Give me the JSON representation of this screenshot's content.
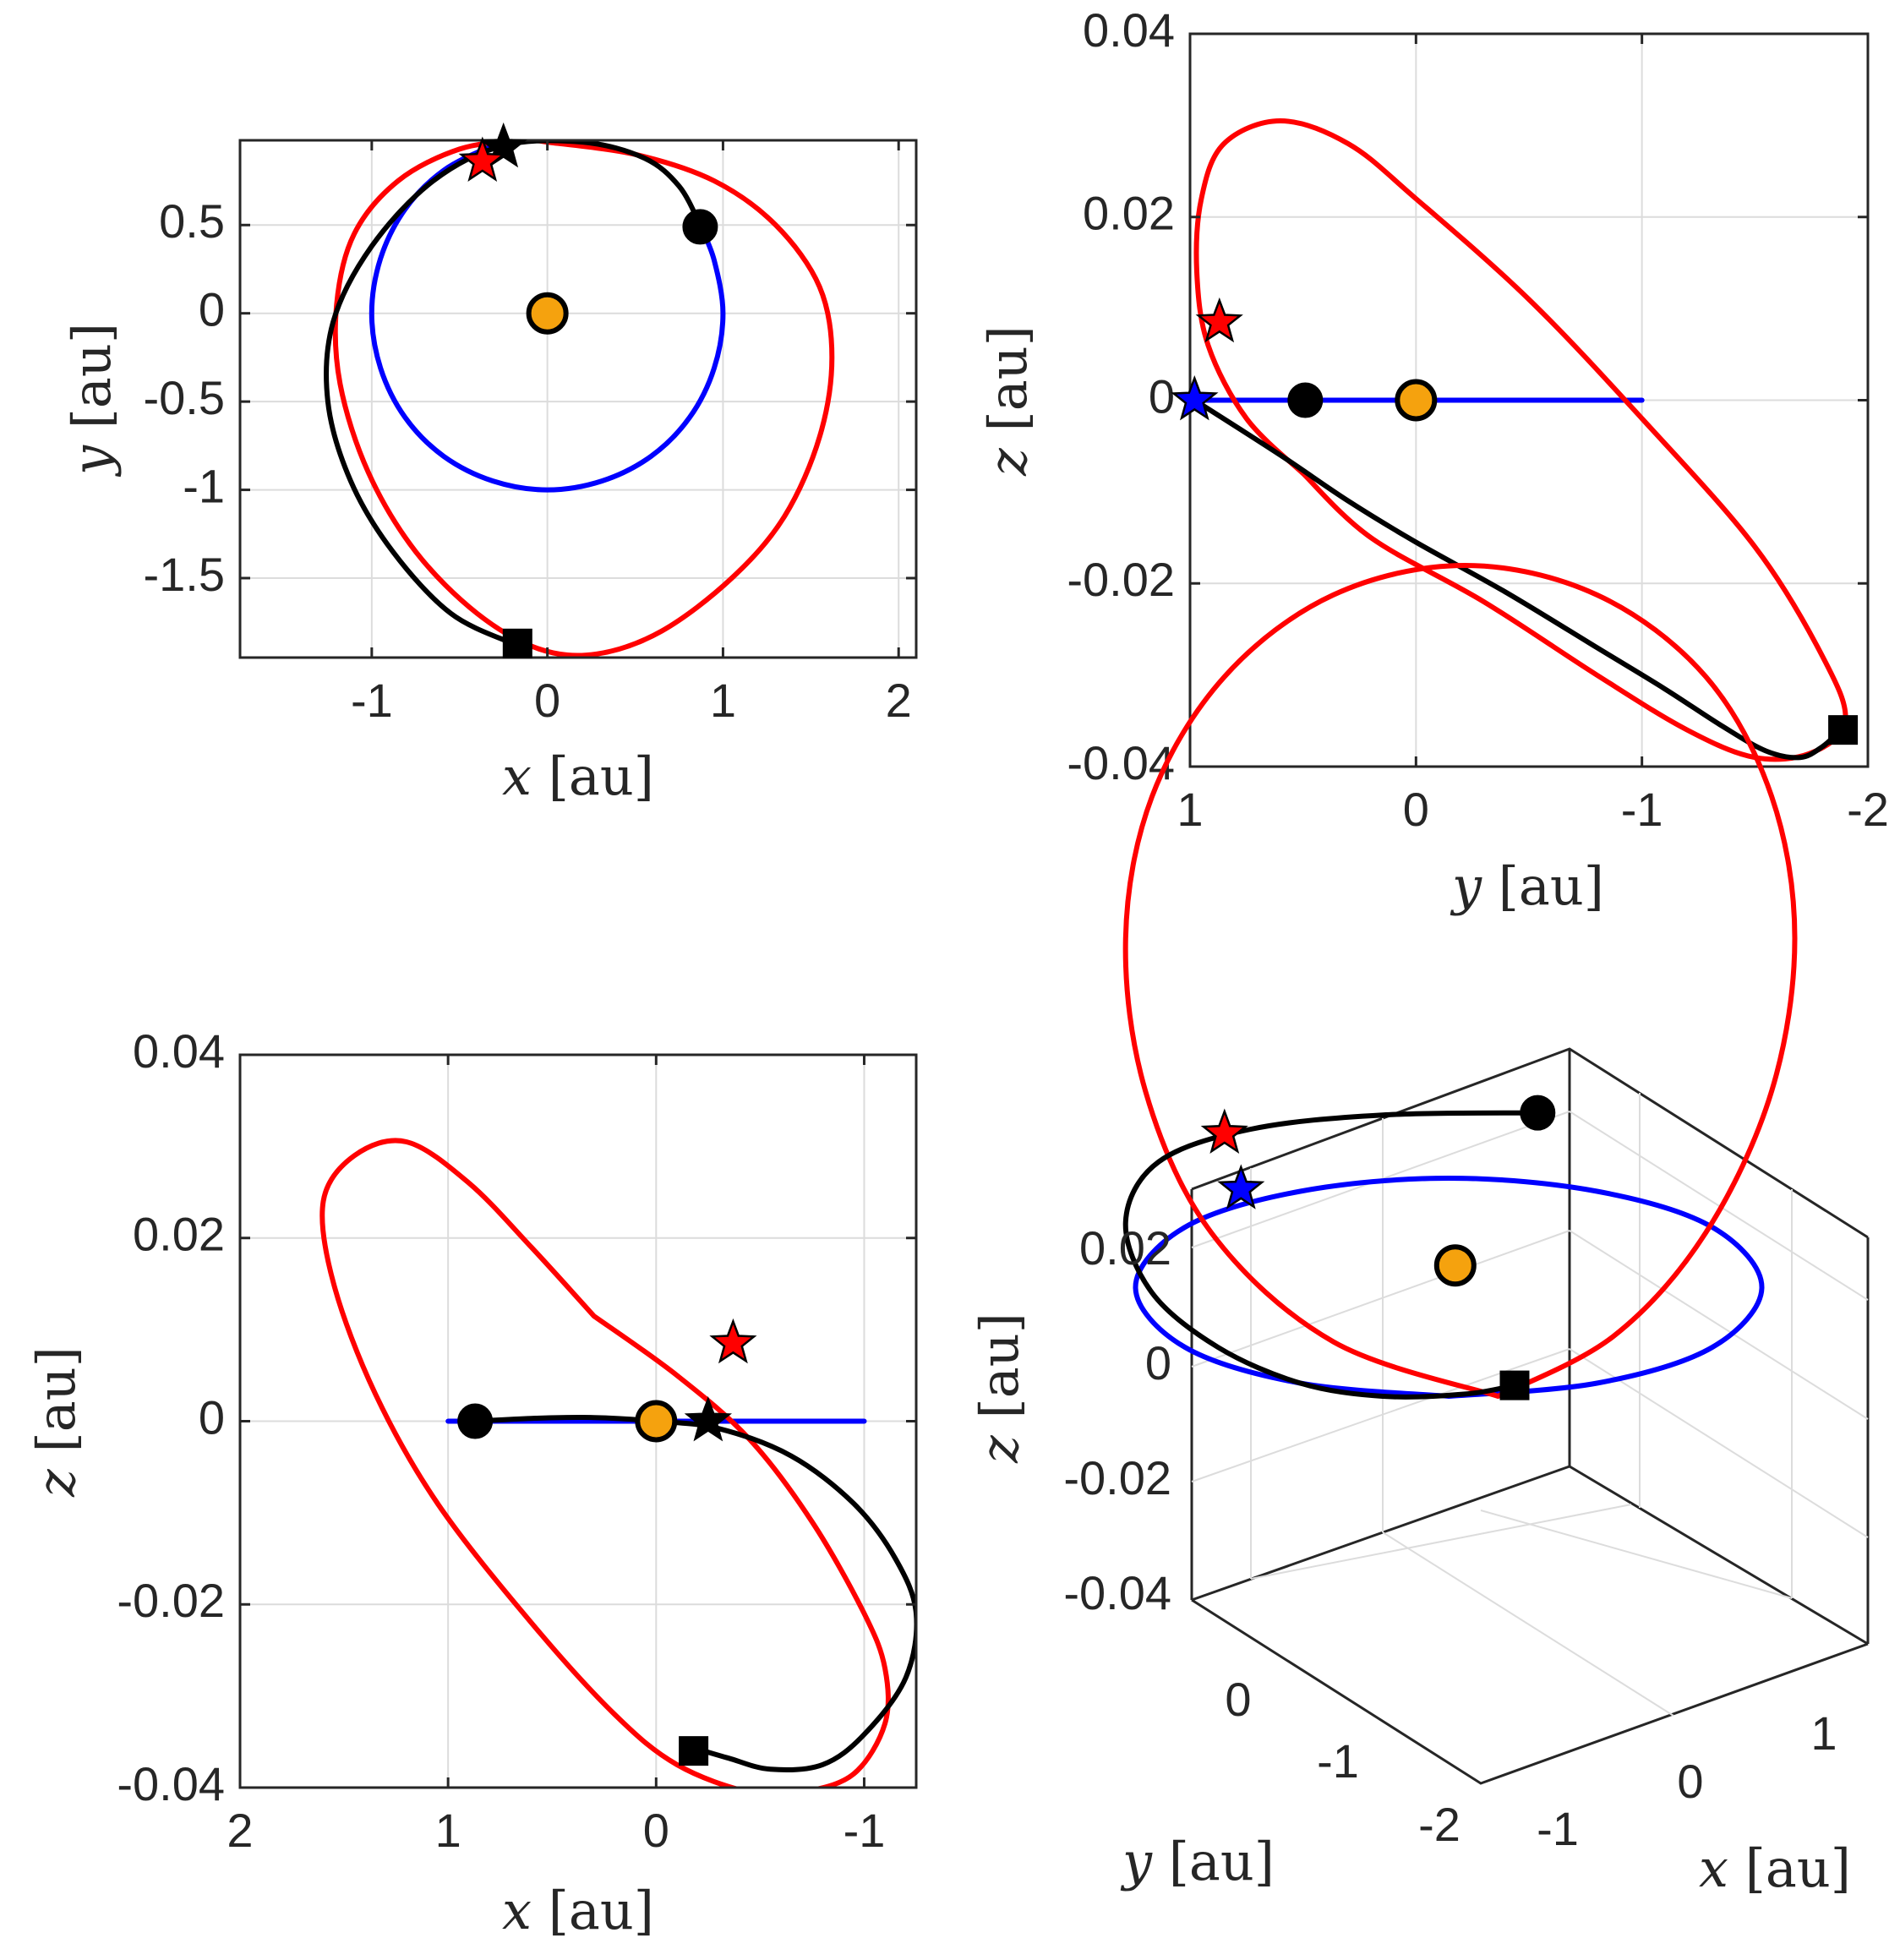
{
  "chart_data": [
    {
      "type": "line",
      "projection": "x-y",
      "xlabel": {
        "var": "x",
        "unit": " [au]"
      },
      "ylabel": {
        "var": "y",
        "unit": " [au]"
      },
      "xlim": [
        -1.75,
        2.1
      ],
      "ylim": [
        -1.95,
        0.98
      ],
      "x_reversed": false,
      "xticks": [
        -1,
        0,
        1,
        2
      ],
      "xtick_labels": [
        "-1",
        "0",
        "1",
        "2"
      ],
      "yticks": [
        -1.5,
        -1,
        -0.5,
        0,
        0.5
      ],
      "ytick_labels": [
        "-1.5",
        "-1",
        "-0.5",
        "0",
        "0.5"
      ],
      "grid": true,
      "series": [
        {
          "color": "#0000ff",
          "points": [
            [
              0.87,
              0.5
            ],
            [
              0.95,
              0.3
            ],
            [
              1.0,
              0.0
            ],
            [
              0.95,
              -0.31
            ],
            [
              0.81,
              -0.59
            ],
            [
              0.59,
              -0.81
            ],
            [
              0.31,
              -0.95
            ],
            [
              0.0,
              -1.0
            ],
            [
              -0.31,
              -0.95
            ],
            [
              -0.59,
              -0.81
            ],
            [
              -0.81,
              -0.59
            ],
            [
              -0.95,
              -0.31
            ],
            [
              -1.0,
              0.0
            ],
            [
              -0.95,
              0.31
            ],
            [
              -0.81,
              0.59
            ],
            [
              -0.59,
              0.81
            ],
            [
              -0.31,
              0.95
            ],
            [
              -0.2,
              0.98
            ]
          ]
        },
        {
          "color": "#ff0000",
          "points": [
            [
              0.0,
              0.97
            ],
            [
              0.5,
              0.9
            ],
            [
              0.95,
              0.75
            ],
            [
              1.3,
              0.5
            ],
            [
              1.55,
              0.15
            ],
            [
              1.62,
              -0.25
            ],
            [
              1.55,
              -0.7
            ],
            [
              1.35,
              -1.15
            ],
            [
              1.05,
              -1.5
            ],
            [
              0.65,
              -1.8
            ],
            [
              0.28,
              -1.93
            ],
            [
              -0.05,
              -1.9
            ],
            [
              -0.4,
              -1.7
            ],
            [
              -0.75,
              -1.35
            ],
            [
              -1.02,
              -0.9
            ],
            [
              -1.18,
              -0.4
            ],
            [
              -1.2,
              0.05
            ],
            [
              -1.1,
              0.45
            ],
            [
              -0.85,
              0.75
            ],
            [
              -0.5,
              0.93
            ],
            [
              -0.15,
              0.98
            ],
            [
              0.0,
              0.97
            ]
          ]
        },
        {
          "color": "#000000",
          "points": [
            [
              0.87,
              0.5
            ],
            [
              0.75,
              0.72
            ],
            [
              0.55,
              0.88
            ],
            [
              0.2,
              0.97
            ],
            [
              -0.25,
              0.95
            ],
            [
              -0.65,
              0.75
            ],
            [
              -1.0,
              0.38
            ],
            [
              -1.22,
              -0.05
            ],
            [
              -1.25,
              -0.5
            ],
            [
              -1.12,
              -0.95
            ],
            [
              -0.88,
              -1.35
            ],
            [
              -0.55,
              -1.7
            ],
            [
              -0.2,
              -1.87
            ]
          ]
        }
      ],
      "markers": [
        {
          "shape": "circle",
          "color": "#f5a20e",
          "x": 0.0,
          "y": 0.0,
          "size": "large"
        },
        {
          "shape": "circle",
          "color": "#000000",
          "x": 0.87,
          "y": 0.49,
          "size": "medium"
        },
        {
          "shape": "square",
          "color": "#000000",
          "x": -0.17,
          "y": -1.87
        },
        {
          "shape": "star",
          "color": "#000000",
          "x": -0.25,
          "y": 0.94
        },
        {
          "shape": "star",
          "color": "#ff0000",
          "x": -0.37,
          "y": 0.86
        }
      ]
    },
    {
      "type": "line",
      "projection": "y-z",
      "xlabel": {
        "var": "y",
        "unit": " [au]"
      },
      "ylabel": {
        "var": "z",
        "unit": " [au]"
      },
      "xlim": [
        -2.0,
        1.0
      ],
      "ylim": [
        -0.04,
        0.04
      ],
      "x_reversed": true,
      "xticks": [
        1,
        0,
        -1,
        -2
      ],
      "xtick_labels": [
        "1",
        "0",
        "-1",
        "-2"
      ],
      "yticks": [
        -0.04,
        -0.02,
        0,
        0.02,
        0.04
      ],
      "ytick_labels": [
        "-0.04",
        "-0.02",
        "0",
        "0.02",
        "0.04"
      ],
      "grid": true,
      "series": [
        {
          "color": "#0000ff",
          "points": [
            [
              0.98,
              0.0
            ],
            [
              0.5,
              0.0
            ],
            [
              0.0,
              0.0
            ],
            [
              -0.5,
              0.0
            ],
            [
              -1.0,
              0.0
            ]
          ]
        },
        {
          "color": "#ff0000",
          "points": [
            [
              0.5,
              -0.008
            ],
            [
              0.75,
              -0.002
            ],
            [
              0.92,
              0.006
            ],
            [
              0.97,
              0.014
            ],
            [
              0.95,
              0.022
            ],
            [
              0.85,
              0.028
            ],
            [
              0.6,
              0.0305
            ],
            [
              0.3,
              0.028
            ],
            [
              0.0,
              0.022
            ],
            [
              -0.5,
              0.011
            ],
            [
              -1.0,
              -0.002
            ],
            [
              -1.5,
              -0.016
            ],
            [
              -1.8,
              -0.028
            ],
            [
              -1.9,
              -0.035
            ],
            [
              -1.75,
              -0.0385
            ],
            [
              -1.5,
              -0.039
            ],
            [
              -1.2,
              -0.036
            ],
            [
              -0.8,
              -0.03
            ],
            [
              -0.3,
              -0.022
            ],
            [
              0.2,
              -0.015
            ],
            [
              0.5,
              -0.008
            ]
          ]
        },
        {
          "color": "#000000",
          "points": [
            [
              0.98,
              0.0
            ],
            [
              0.6,
              -0.006
            ],
            [
              0.3,
              -0.011
            ],
            [
              0.0,
              -0.0155
            ],
            [
              -0.4,
              -0.021
            ],
            [
              -0.8,
              -0.027
            ],
            [
              -1.1,
              -0.0315
            ],
            [
              -1.35,
              -0.0355
            ],
            [
              -1.55,
              -0.0383
            ],
            [
              -1.7,
              -0.039
            ],
            [
              -1.8,
              -0.0378
            ],
            [
              -1.88,
              -0.036
            ]
          ]
        }
      ],
      "markers": [
        {
          "shape": "circle",
          "color": "#f5a20e",
          "x": 0.0,
          "y": 0.0,
          "size": "large"
        },
        {
          "shape": "circle",
          "color": "#000000",
          "x": 0.49,
          "y": 0.0,
          "size": "medium"
        },
        {
          "shape": "square",
          "color": "#000000",
          "x": -1.89,
          "y": -0.036
        },
        {
          "shape": "star",
          "color": "#0000ff",
          "x": 0.98,
          "y": 0.0
        },
        {
          "shape": "star",
          "color": "#ff0000",
          "x": 0.87,
          "y": 0.0085
        }
      ]
    },
    {
      "type": "line",
      "projection": "x-z",
      "xlabel": {
        "var": "x",
        "unit": " [au]"
      },
      "ylabel": {
        "var": "z",
        "unit": " [au]"
      },
      "xlim": [
        -1.25,
        2.0
      ],
      "ylim": [
        -0.04,
        0.04
      ],
      "x_reversed": true,
      "xticks": [
        2,
        1,
        0,
        -1
      ],
      "xtick_labels": [
        "2",
        "1",
        "0",
        "-1"
      ],
      "yticks": [
        -0.04,
        -0.02,
        0,
        0.02,
        0.04
      ],
      "ytick_labels": [
        "-0.04",
        "-0.02",
        "0",
        "0.02",
        "0.04"
      ],
      "grid": true,
      "series": [
        {
          "color": "#0000ff",
          "points": [
            [
              1.0,
              0.0
            ],
            [
              0.5,
              0.0
            ],
            [
              0.0,
              0.0
            ],
            [
              -0.5,
              0.0
            ],
            [
              -1.0,
              0.0
            ]
          ]
        },
        {
          "color": "#ff0000",
          "points": [
            [
              0.3,
              0.0115
            ],
            [
              0.6,
              0.019
            ],
            [
              0.9,
              0.026
            ],
            [
              1.2,
              0.0305
            ],
            [
              1.45,
              0.029
            ],
            [
              1.6,
              0.024
            ],
            [
              1.55,
              0.015
            ],
            [
              1.35,
              0.003
            ],
            [
              1.05,
              -0.009
            ],
            [
              0.6,
              -0.022
            ],
            [
              0.2,
              -0.032
            ],
            [
              -0.1,
              -0.0375
            ],
            [
              -0.45,
              -0.0405
            ],
            [
              -0.7,
              -0.0405
            ],
            [
              -0.95,
              -0.0385
            ],
            [
              -1.1,
              -0.033
            ],
            [
              -1.1,
              -0.027
            ],
            [
              -1.0,
              -0.021
            ],
            [
              -0.75,
              -0.011
            ],
            [
              -0.45,
              -0.002
            ],
            [
              -0.1,
              0.005
            ],
            [
              0.3,
              0.0115
            ]
          ]
        },
        {
          "color": "#000000",
          "points": [
            [
              0.87,
              0.0
            ],
            [
              0.6,
              0.0003
            ],
            [
              0.3,
              0.0004
            ],
            [
              0.0,
              0.0
            ],
            [
              -0.3,
              -0.0008
            ],
            [
              -0.65,
              -0.0038
            ],
            [
              -0.95,
              -0.009
            ],
            [
              -1.15,
              -0.015
            ],
            [
              -1.25,
              -0.021
            ],
            [
              -1.2,
              -0.028
            ],
            [
              -1.0,
              -0.0342
            ],
            [
              -0.8,
              -0.0375
            ],
            [
              -0.55,
              -0.038
            ],
            [
              -0.35,
              -0.0368
            ],
            [
              -0.2,
              -0.0358
            ]
          ]
        }
      ],
      "markers": [
        {
          "shape": "circle",
          "color": "#f5a20e",
          "x": 0.0,
          "y": 0.0,
          "size": "large"
        },
        {
          "shape": "circle",
          "color": "#000000",
          "x": 0.87,
          "y": 0.0,
          "size": "medium"
        },
        {
          "shape": "square",
          "color": "#000000",
          "x": -0.18,
          "y": -0.036
        },
        {
          "shape": "star",
          "color": "#000000",
          "x": -0.25,
          "y": 0.0
        },
        {
          "shape": "star",
          "color": "#ff0000",
          "x": -0.37,
          "y": 0.0085
        }
      ]
    },
    {
      "type": "line",
      "projection": "3d",
      "xlabel": {
        "var": "x",
        "unit": " [au]"
      },
      "ylabel": {
        "var": "y",
        "unit": " [au]"
      },
      "zlabel": {
        "var": "z",
        "unit": " [au]"
      },
      "xticks": [
        -1,
        0,
        1
      ],
      "xtick_labels": [
        "-1",
        "0",
        "1"
      ],
      "yticks": [
        -2,
        -1,
        0
      ],
      "ytick_labels": [
        "-2",
        "-1",
        "0"
      ],
      "zticks": [
        -0.04,
        -0.02,
        0,
        0.02
      ],
      "ztick_labels": [
        "-0.04",
        "-0.02",
        "0",
        "0.02"
      ],
      "grid": true,
      "view_series": [
        {
          "color": "#0000ff",
          "points": [
            [
              0.0,
              0.0
            ],
            [
              0.45,
              0.12
            ],
            [
              0.8,
              0.45
            ],
            [
              0.95,
              1.0
            ],
            [
              0.8,
              1.55
            ],
            [
              0.45,
              1.88
            ],
            [
              0.0,
              2.0
            ],
            [
              -0.45,
              1.88
            ],
            [
              -0.8,
              1.55
            ],
            [
              -0.95,
              1.0
            ],
            [
              -0.8,
              0.45
            ],
            [
              -0.45,
              0.12
            ],
            [
              0.0,
              0.0
            ]
          ]
        },
        {
          "color": "#ff0000",
          "points": [
            [
              0.15,
              0.0
            ],
            [
              -0.35,
              0.5
            ],
            [
              -0.72,
              1.5
            ],
            [
              -0.92,
              2.8
            ],
            [
              -0.98,
              4.2
            ],
            [
              -0.9,
              5.5
            ],
            [
              -0.68,
              6.6
            ],
            [
              -0.35,
              7.35
            ],
            [
              0.05,
              7.62
            ],
            [
              0.45,
              7.35
            ],
            [
              0.78,
              6.6
            ],
            [
              0.98,
              5.5
            ],
            [
              1.05,
              4.2
            ],
            [
              0.98,
              2.8
            ],
            [
              0.78,
              1.5
            ],
            [
              0.5,
              0.55
            ],
            [
              0.15,
              0.0
            ]
          ]
        },
        {
          "color": "#000000",
          "points": [
            [
              0.27,
              2.6
            ],
            [
              -0.2,
              2.58
            ],
            [
              -0.6,
              2.45
            ],
            [
              -0.88,
              2.15
            ],
            [
              -0.98,
              1.6
            ],
            [
              -0.9,
              0.95
            ],
            [
              -0.7,
              0.45
            ],
            [
              -0.45,
              0.12
            ],
            [
              -0.2,
              0.0
            ],
            [
              0.05,
              0.02
            ],
            [
              0.2,
              0.1
            ]
          ]
        }
      ],
      "markers": [
        {
          "shape": "circle",
          "color": "#f5a20e",
          "view": [
            0.02,
            1.2
          ],
          "size": "large"
        },
        {
          "shape": "circle",
          "color": "#000000",
          "view": [
            0.27,
            2.6
          ],
          "size": "medium"
        },
        {
          "shape": "square",
          "color": "#000000",
          "view": [
            0.2,
            0.1
          ]
        },
        {
          "shape": "star",
          "color": "#0000ff",
          "view": [
            -0.63,
            1.9
          ]
        },
        {
          "shape": "star",
          "color": "#ff0000",
          "view": [
            -0.68,
            2.41
          ]
        }
      ]
    }
  ]
}
